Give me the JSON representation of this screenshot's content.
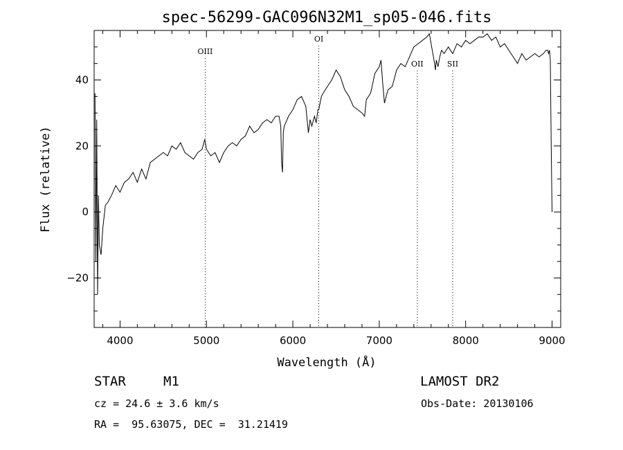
{
  "chart_data": {
    "type": "line",
    "title": "spec-56299-GAC096N32M1_sp05-046.fits",
    "xlabel": "Wavelength (Å)",
    "ylabel": "Flux (relative)",
    "xlim": [
      3700,
      9100
    ],
    "ylim": [
      -35,
      55
    ],
    "xticks": [
      4000,
      5000,
      6000,
      7000,
      8000,
      9000
    ],
    "yticks": [
      -20,
      0,
      20,
      40
    ],
    "grid": false,
    "lines": [
      {
        "label": "OIII",
        "x": 4985
      },
      {
        "label": "OI",
        "x": 6300
      },
      {
        "label": "OII",
        "x": 7440
      },
      {
        "label": "SII",
        "x": 7850
      }
    ],
    "series": [
      {
        "x": [
          3710,
          3720,
          3730,
          3740,
          3750,
          3760,
          3780,
          3800,
          3830,
          3860,
          3900,
          3950,
          4000,
          4050,
          4100,
          4150,
          4200,
          4250,
          4300,
          4350,
          4400,
          4450,
          4500,
          4550,
          4600,
          4650,
          4700,
          4750,
          4800,
          4850,
          4900,
          4950,
          4980,
          5000,
          5050,
          5100,
          5150,
          5200,
          5250,
          5300,
          5350,
          5400,
          5450,
          5500,
          5550,
          5600,
          5650,
          5700,
          5750,
          5800,
          5840,
          5860,
          5870,
          5880,
          5890,
          5900,
          5950,
          6000,
          6050,
          6100,
          6150,
          6180,
          6200,
          6220,
          6250,
          6270,
          6290,
          6300,
          6330,
          6350,
          6400,
          6450,
          6500,
          6550,
          6600,
          6650,
          6700,
          6750,
          6800,
          6830,
          6850,
          6900,
          6950,
          7000,
          7020,
          7040,
          7060,
          7080,
          7100,
          7150,
          7200,
          7250,
          7300,
          7350,
          7400,
          7450,
          7500,
          7550,
          7580,
          7600,
          7620,
          7640,
          7650,
          7660,
          7680,
          7700,
          7720,
          7750,
          7800,
          7850,
          7900,
          7950,
          8000,
          8050,
          8100,
          8150,
          8200,
          8250,
          8300,
          8350,
          8400,
          8450,
          8500,
          8550,
          8600,
          8650,
          8700,
          8750,
          8800,
          8850,
          8900,
          8930,
          8950,
          8960,
          8970,
          8980,
          8990,
          9000
        ],
        "y": [
          36,
          -15,
          28,
          -25,
          5,
          -10,
          -13,
          -5,
          2,
          3,
          5,
          8,
          6,
          9,
          10,
          12,
          9,
          13,
          10,
          15,
          16,
          17,
          18,
          17,
          20,
          19,
          21,
          18,
          17,
          16,
          18,
          19,
          22,
          19,
          17,
          18,
          15,
          18,
          20,
          21,
          20,
          22,
          23,
          26,
          24,
          25,
          27,
          28,
          27,
          29,
          29,
          26,
          15,
          12,
          24,
          26,
          29,
          31,
          34,
          35,
          32,
          24,
          28,
          26,
          29,
          27,
          31,
          31,
          35,
          36,
          38,
          40,
          43,
          41,
          37,
          35,
          32,
          31,
          30,
          29,
          34,
          36,
          42,
          44,
          46,
          39,
          33,
          35,
          37,
          38,
          43,
          45,
          44,
          47,
          50,
          51,
          52,
          53,
          54,
          51,
          48,
          45,
          43,
          46,
          44,
          47,
          49,
          48,
          50,
          48,
          51,
          50,
          52,
          51,
          52,
          53,
          53,
          54,
          52,
          53,
          50,
          51,
          49,
          47,
          45,
          48,
          46,
          47,
          48,
          47,
          48,
          49,
          49,
          48,
          49,
          46,
          20,
          0
        ]
      }
    ]
  },
  "info": {
    "object_class": "STAR",
    "subclass": "M1",
    "survey": "LAMOST DR2",
    "cz": "cz = 24.6 ± 3.6 km/s",
    "obs_date": "Obs-Date: 20130106",
    "coords": "RA =  95.63075, DEC =  31.21419"
  }
}
